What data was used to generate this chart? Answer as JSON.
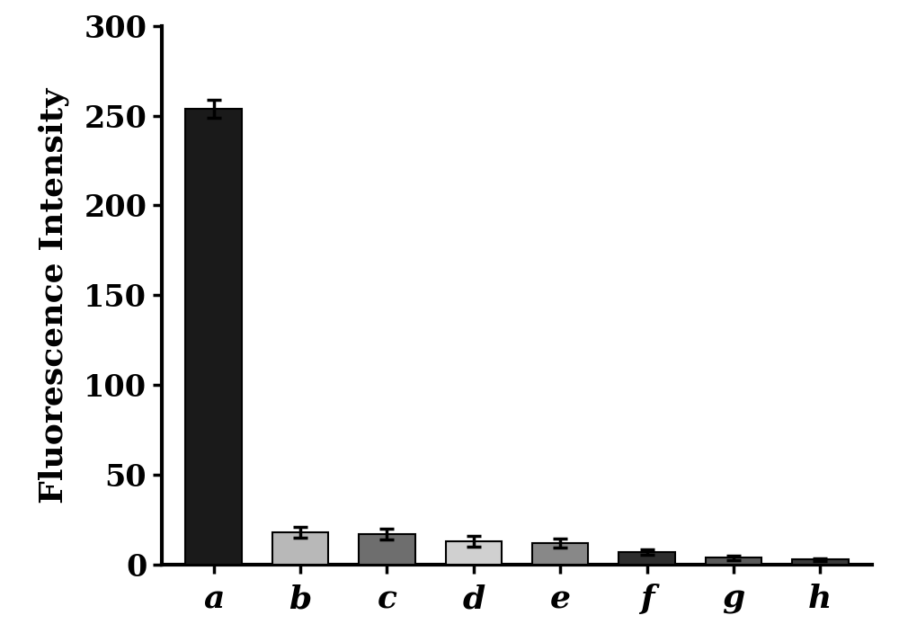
{
  "categories": [
    "a",
    "b",
    "c",
    "d",
    "e",
    "f",
    "g",
    "h"
  ],
  "values": [
    254,
    18,
    17,
    13,
    12,
    7,
    4,
    3
  ],
  "errors": [
    5,
    3,
    3,
    3,
    2.5,
    1.5,
    1.2,
    0.8
  ],
  "bar_colors": [
    "#1a1a1a",
    "#b8b8b8",
    "#6e6e6e",
    "#d0d0d0",
    "#888888",
    "#2e2e2e",
    "#5a5a5a",
    "#3a3a3a"
  ],
  "ylabel": "Fluorescence Intensity",
  "ylim": [
    0,
    300
  ],
  "yticks": [
    0,
    50,
    100,
    150,
    200,
    250,
    300
  ],
  "background_color": "#ffffff",
  "tick_label_fontsize": 24,
  "ylabel_fontsize": 26,
  "xlabel_fontsize": 26,
  "bar_width": 0.65,
  "capsize": 6,
  "error_linewidth": 2.5,
  "error_capthick": 2.5,
  "spine_linewidth": 3.0
}
